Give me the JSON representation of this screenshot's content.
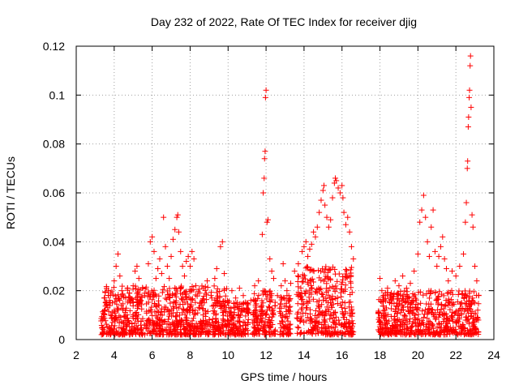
{
  "chart_data": {
    "type": "scatter",
    "title": "Day 232 of 2022, Rate Of TEC Index for receiver djig",
    "xlabel": "GPS time / hours",
    "ylabel": "ROTI / TECUs",
    "xlim": [
      2,
      24
    ],
    "ylim": [
      0,
      0.12
    ],
    "x_ticks": [
      "2",
      "4",
      "6",
      "8",
      "10",
      "12",
      "14",
      "16",
      "18",
      "20",
      "22",
      "24"
    ],
    "y_ticks": [
      "0",
      "0.02",
      "0.04",
      "0.06",
      "0.08",
      "0.1",
      "0.12"
    ],
    "grid": true,
    "marker": "plus",
    "color": "#ff0000",
    "series": [
      {
        "points": [
          [
            3.4,
            0.008
          ],
          [
            3.5,
            0.012
          ],
          [
            3.6,
            0.021
          ],
          [
            3.7,
            0.018
          ],
          [
            3.8,
            0.01
          ],
          [
            3.9,
            0.015
          ],
          [
            4.0,
            0.024
          ],
          [
            4.1,
            0.03
          ],
          [
            4.2,
            0.035
          ],
          [
            4.3,
            0.026
          ],
          [
            4.4,
            0.02
          ],
          [
            4.6,
            0.017
          ],
          [
            4.8,
            0.019
          ],
          [
            5.0,
            0.022
          ],
          [
            5.1,
            0.028
          ],
          [
            5.2,
            0.03
          ],
          [
            5.3,
            0.025
          ],
          [
            5.4,
            0.016
          ],
          [
            5.5,
            0.021
          ],
          [
            5.6,
            0.018
          ],
          [
            5.8,
            0.031
          ],
          [
            5.9,
            0.04
          ],
          [
            6.0,
            0.042
          ],
          [
            6.1,
            0.036
          ],
          [
            6.2,
            0.025
          ],
          [
            6.3,
            0.029
          ],
          [
            6.4,
            0.033
          ],
          [
            6.5,
            0.027
          ],
          [
            6.6,
            0.05
          ],
          [
            6.7,
            0.038
          ],
          [
            6.8,
            0.03
          ],
          [
            6.9,
            0.025
          ],
          [
            7.0,
            0.034
          ],
          [
            7.1,
            0.041
          ],
          [
            7.2,
            0.045
          ],
          [
            7.3,
            0.05
          ],
          [
            7.35,
            0.051
          ],
          [
            7.4,
            0.044
          ],
          [
            7.5,
            0.036
          ],
          [
            7.6,
            0.03
          ],
          [
            7.7,
            0.026
          ],
          [
            7.8,
            0.032
          ],
          [
            7.9,
            0.034
          ],
          [
            8.0,
            0.03
          ],
          [
            8.1,
            0.036
          ],
          [
            8.2,
            0.033
          ],
          [
            8.3,
            0.022
          ],
          [
            8.5,
            0.019
          ],
          [
            8.7,
            0.021
          ],
          [
            8.9,
            0.024
          ],
          [
            9.1,
            0.018
          ],
          [
            9.3,
            0.025
          ],
          [
            9.4,
            0.029
          ],
          [
            9.6,
            0.038
          ],
          [
            9.7,
            0.04
          ],
          [
            9.8,
            0.027
          ],
          [
            10.0,
            0.015
          ],
          [
            10.2,
            0.02
          ],
          [
            10.4,
            0.017
          ],
          [
            10.6,
            0.021
          ],
          [
            10.8,
            0.018
          ],
          [
            11.0,
            0.015
          ],
          [
            11.2,
            0.016
          ],
          [
            11.4,
            0.022
          ],
          [
            11.6,
            0.024
          ],
          [
            11.8,
            0.043
          ],
          [
            11.85,
            0.06
          ],
          [
            11.9,
            0.066
          ],
          [
            11.92,
            0.074
          ],
          [
            11.95,
            0.077
          ],
          [
            11.97,
            0.099
          ],
          [
            12.0,
            0.102
          ],
          [
            12.05,
            0.048
          ],
          [
            12.1,
            0.049
          ],
          [
            12.2,
            0.033
          ],
          [
            12.3,
            0.028
          ],
          [
            12.4,
            0.025
          ],
          [
            12.6,
            0.018
          ],
          [
            12.8,
            0.022
          ],
          [
            12.9,
            0.031
          ],
          [
            13.0,
            0.024
          ],
          [
            13.1,
            0.02
          ],
          [
            13.2,
            0.018
          ],
          [
            13.3,
            0.023
          ],
          [
            13.5,
            0.028
          ],
          [
            13.7,
            0.031
          ],
          [
            13.9,
            0.036
          ],
          [
            14.0,
            0.038
          ],
          [
            14.1,
            0.04
          ],
          [
            14.2,
            0.034
          ],
          [
            14.3,
            0.037
          ],
          [
            14.4,
            0.039
          ],
          [
            14.5,
            0.044
          ],
          [
            14.6,
            0.042
          ],
          [
            14.7,
            0.046
          ],
          [
            14.8,
            0.052
          ],
          [
            14.9,
            0.057
          ],
          [
            15.0,
            0.061
          ],
          [
            15.05,
            0.063
          ],
          [
            15.1,
            0.055
          ],
          [
            15.2,
            0.05
          ],
          [
            15.3,
            0.046
          ],
          [
            15.4,
            0.049
          ],
          [
            15.5,
            0.058
          ],
          [
            15.6,
            0.064
          ],
          [
            15.65,
            0.066
          ],
          [
            15.7,
            0.065
          ],
          [
            15.8,
            0.062
          ],
          [
            15.9,
            0.06
          ],
          [
            16.0,
            0.063
          ],
          [
            16.05,
            0.058
          ],
          [
            16.1,
            0.052
          ],
          [
            16.2,
            0.047
          ],
          [
            16.3,
            0.05
          ],
          [
            16.4,
            0.044
          ],
          [
            16.5,
            0.038
          ],
          [
            16.6,
            0.033
          ],
          [
            18.0,
            0.025
          ],
          [
            18.1,
            0.02
          ],
          [
            18.2,
            0.018
          ],
          [
            18.4,
            0.021
          ],
          [
            18.6,
            0.019
          ],
          [
            18.8,
            0.024
          ],
          [
            19.0,
            0.022
          ],
          [
            19.2,
            0.026
          ],
          [
            19.4,
            0.021
          ],
          [
            19.6,
            0.023
          ],
          [
            19.8,
            0.028
          ],
          [
            20.0,
            0.035
          ],
          [
            20.1,
            0.048
          ],
          [
            20.2,
            0.053
          ],
          [
            20.3,
            0.059
          ],
          [
            20.4,
            0.05
          ],
          [
            20.5,
            0.04
          ],
          [
            20.6,
            0.034
          ],
          [
            20.7,
            0.046
          ],
          [
            20.8,
            0.053
          ],
          [
            20.9,
            0.036
          ],
          [
            21.0,
            0.03
          ],
          [
            21.1,
            0.034
          ],
          [
            21.2,
            0.038
          ],
          [
            21.3,
            0.042
          ],
          [
            21.4,
            0.033
          ],
          [
            21.5,
            0.029
          ],
          [
            21.6,
            0.024
          ],
          [
            21.8,
            0.028
          ],
          [
            22.0,
            0.026
          ],
          [
            22.2,
            0.03
          ],
          [
            22.4,
            0.035
          ],
          [
            22.5,
            0.048
          ],
          [
            22.55,
            0.056
          ],
          [
            22.6,
            0.07
          ],
          [
            22.62,
            0.073
          ],
          [
            22.65,
            0.087
          ],
          [
            22.67,
            0.091
          ],
          [
            22.7,
            0.099
          ],
          [
            22.72,
            0.102
          ],
          [
            22.75,
            0.112
          ],
          [
            22.77,
            0.116
          ],
          [
            22.8,
            0.095
          ],
          [
            22.85,
            0.051
          ],
          [
            22.9,
            0.046
          ],
          [
            23.0,
            0.03
          ],
          [
            23.1,
            0.024
          ],
          [
            23.2,
            0.018
          ]
        ]
      }
    ],
    "dense_bands": [
      {
        "x_range": [
          3.3,
          10.0
        ],
        "y_range": [
          0.002,
          0.022
        ]
      },
      {
        "x_range": [
          10.0,
          11.1
        ],
        "y_range": [
          0.002,
          0.016
        ]
      },
      {
        "x_range": [
          11.3,
          12.5
        ],
        "y_range": [
          0.002,
          0.02
        ]
      },
      {
        "x_range": [
          12.7,
          13.3
        ],
        "y_range": [
          0.002,
          0.018
        ]
      },
      {
        "x_range": [
          13.6,
          16.6
        ],
        "y_range": [
          0.002,
          0.03
        ]
      },
      {
        "x_range": [
          17.9,
          23.2
        ],
        "y_range": [
          0.002,
          0.02
        ]
      }
    ]
  }
}
